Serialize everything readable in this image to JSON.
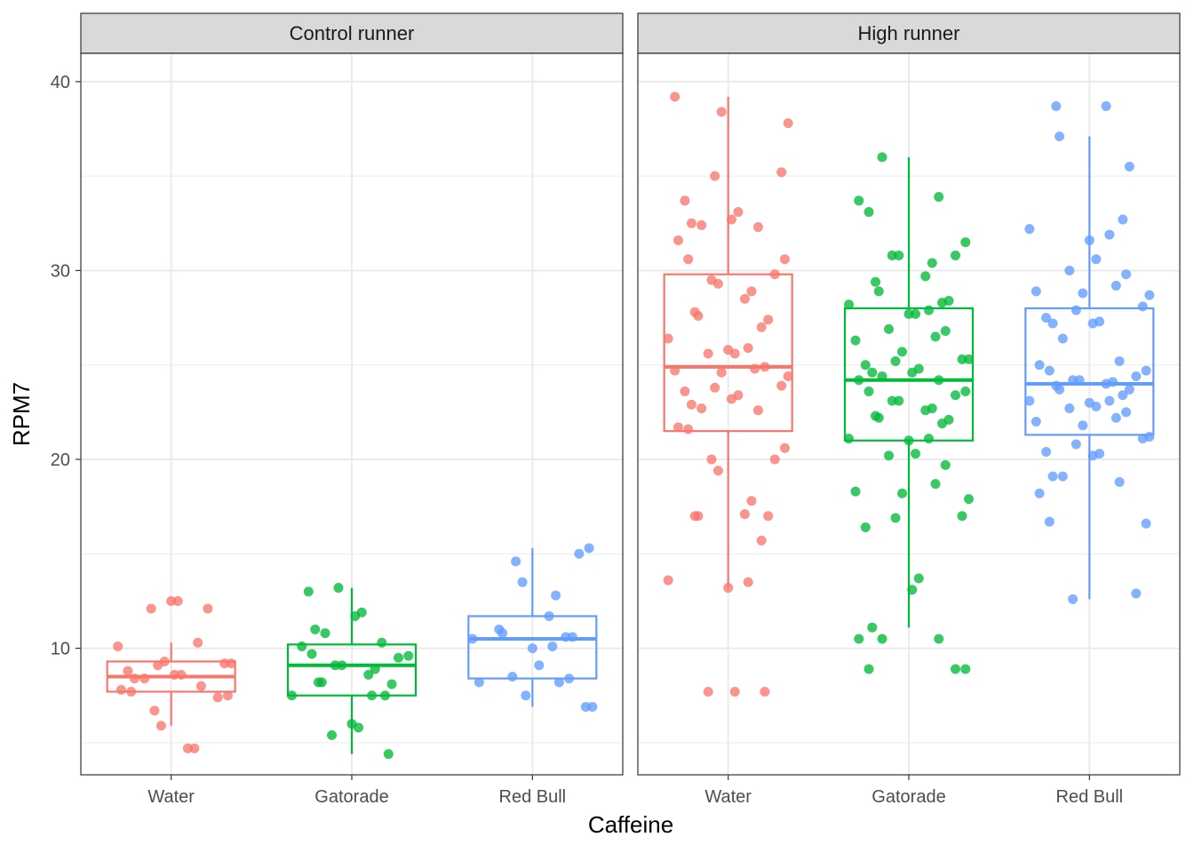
{
  "chart_data": {
    "type": "box",
    "xlabel": "Caffeine",
    "ylabel": "RPM7",
    "categories": [
      "Water",
      "Gatorade",
      "Red Bull"
    ],
    "colors": {
      "Water": "#F8766D",
      "Gatorade": "#00BA38",
      "Red Bull": "#619CFF"
    },
    "ylim": [
      3.3,
      41.5
    ],
    "yticks": [
      10,
      20,
      30,
      40
    ],
    "panels": [
      {
        "title": "Control runner",
        "groups": [
          {
            "category": "Water",
            "box": {
              "min": 5.9,
              "q1": 7.7,
              "median": 8.5,
              "q3": 9.3,
              "max": 10.3
            },
            "points": [
              12.5,
              12.5,
              12.1,
              12.1,
              10.3,
              10.1,
              9.3,
              9.2,
              9.2,
              9.1,
              8.8,
              8.6,
              8.6,
              8.4,
              8.4,
              8.0,
              7.8,
              7.7,
              7.5,
              7.4,
              6.7,
              5.9,
              4.7,
              4.7
            ]
          },
          {
            "category": "Gatorade",
            "box": {
              "min": 4.4,
              "q1": 7.5,
              "median": 9.1,
              "q3": 10.2,
              "max": 13.2
            },
            "points": [
              13.2,
              13.0,
              11.9,
              11.7,
              11.0,
              10.8,
              10.3,
              10.1,
              9.7,
              9.6,
              9.5,
              9.1,
              9.1,
              8.9,
              8.6,
              8.2,
              8.2,
              8.1,
              7.5,
              7.5,
              7.5,
              6.0,
              5.8,
              5.4,
              4.4
            ]
          },
          {
            "category": "Red Bull",
            "box": {
              "min": 6.9,
              "q1": 8.4,
              "median": 10.5,
              "q3": 11.7,
              "max": 15.3
            },
            "points": [
              15.3,
              15.0,
              14.6,
              13.5,
              12.8,
              11.7,
              11.0,
              10.8,
              10.6,
              10.6,
              10.5,
              10.1,
              10.0,
              9.1,
              8.5,
              8.4,
              8.2,
              8.2,
              7.5,
              6.9,
              6.9
            ]
          }
        ]
      },
      {
        "title": "High runner",
        "groups": [
          {
            "category": "Water",
            "box": {
              "min": 13.2,
              "q1": 21.5,
              "median": 24.9,
              "q3": 29.8,
              "max": 39.2
            },
            "points": [
              39.2,
              38.4,
              37.8,
              35.2,
              35.0,
              33.7,
              33.1,
              32.7,
              32.5,
              32.4,
              32.3,
              31.6,
              30.6,
              30.6,
              29.8,
              29.5,
              29.3,
              28.9,
              28.5,
              27.8,
              27.6,
              27.4,
              27.0,
              26.4,
              25.9,
              25.8,
              25.6,
              25.6,
              24.9,
              24.8,
              24.7,
              24.6,
              24.4,
              23.9,
              23.8,
              23.6,
              23.4,
              23.2,
              22.9,
              22.7,
              22.6,
              21.7,
              21.6,
              20.6,
              20.0,
              20.0,
              19.4,
              17.8,
              17.1,
              17.0,
              17.0,
              17.0,
              15.7,
              13.6,
              13.5,
              13.2,
              7.7,
              7.7,
              7.7
            ]
          },
          {
            "category": "Gatorade",
            "box": {
              "min": 11.1,
              "q1": 21.0,
              "median": 24.2,
              "q3": 28.0,
              "max": 36.0
            },
            "points": [
              36.0,
              33.9,
              33.7,
              33.1,
              31.5,
              30.8,
              30.8,
              30.8,
              30.4,
              29.7,
              29.4,
              28.9,
              28.4,
              28.3,
              28.2,
              27.9,
              27.7,
              27.7,
              26.9,
              26.8,
              26.5,
              26.3,
              25.7,
              25.3,
              25.3,
              25.2,
              25.0,
              24.8,
              24.6,
              24.6,
              24.4,
              24.2,
              24.2,
              23.6,
              23.6,
              23.4,
              23.1,
              23.1,
              22.7,
              22.6,
              22.3,
              22.2,
              22.1,
              21.9,
              21.1,
              21.1,
              21.0,
              20.3,
              20.2,
              19.7,
              18.7,
              18.3,
              18.2,
              17.9,
              17.0,
              16.9,
              16.4,
              13.7,
              13.1,
              11.1,
              10.5,
              10.5,
              10.5,
              8.9,
              8.9,
              8.9
            ]
          },
          {
            "category": "Red Bull",
            "box": {
              "min": 12.6,
              "q1": 21.3,
              "median": 24.0,
              "q3": 28.0,
              "max": 37.1
            },
            "points": [
              38.7,
              38.7,
              37.1,
              35.5,
              32.7,
              32.2,
              31.9,
              31.6,
              30.6,
              30.0,
              29.8,
              29.2,
              28.9,
              28.8,
              28.7,
              28.1,
              27.9,
              27.5,
              27.3,
              27.2,
              27.2,
              26.4,
              25.2,
              25.0,
              24.7,
              24.7,
              24.4,
              24.2,
              24.2,
              24.1,
              24.0,
              23.9,
              23.7,
              23.7,
              23.4,
              23.1,
              23.1,
              23.0,
              22.8,
              22.7,
              22.5,
              22.2,
              22.0,
              21.8,
              21.2,
              21.1,
              20.8,
              20.4,
              20.3,
              20.2,
              19.1,
              19.1,
              18.8,
              18.2,
              16.7,
              16.6,
              12.9,
              12.6
            ]
          }
        ]
      }
    ]
  }
}
